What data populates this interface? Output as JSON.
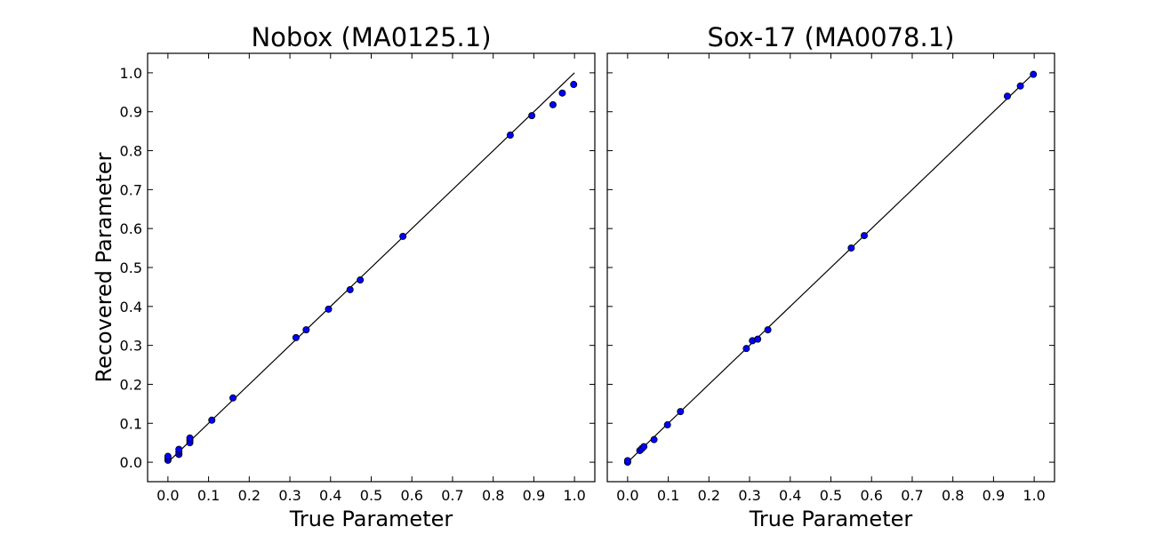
{
  "chart_data": [
    {
      "type": "scatter",
      "title": "Nobox (MA0125.1)",
      "xlabel": "True Parameter",
      "ylabel": "Recovered Parameter",
      "xlim": [
        -0.05,
        1.05
      ],
      "ylim": [
        -0.05,
        1.05
      ],
      "xticks": [
        "0.0",
        "0.1",
        "0.2",
        "0.3",
        "0.4",
        "0.5",
        "0.6",
        "0.7",
        "0.8",
        "0.9",
        "1.0"
      ],
      "yticks": [
        "0.0",
        "0.1",
        "0.2",
        "0.3",
        "0.4",
        "0.5",
        "0.6",
        "0.7",
        "0.8",
        "0.9",
        "1.0"
      ],
      "reference_line": [
        [
          0,
          0
        ],
        [
          1,
          1
        ]
      ],
      "points": [
        [
          0.0,
          0.005
        ],
        [
          0.0,
          0.01
        ],
        [
          0.0,
          0.015
        ],
        [
          0.027,
          0.02
        ],
        [
          0.027,
          0.027
        ],
        [
          0.027,
          0.033
        ],
        [
          0.054,
          0.05
        ],
        [
          0.054,
          0.056
        ],
        [
          0.054,
          0.062
        ],
        [
          0.108,
          0.108
        ],
        [
          0.16,
          0.165
        ],
        [
          0.315,
          0.32
        ],
        [
          0.34,
          0.34
        ],
        [
          0.395,
          0.393
        ],
        [
          0.448,
          0.443
        ],
        [
          0.473,
          0.468
        ],
        [
          0.578,
          0.58
        ],
        [
          0.842,
          0.84
        ],
        [
          0.895,
          0.89
        ],
        [
          0.947,
          0.918
        ],
        [
          0.97,
          0.948
        ],
        [
          0.998,
          0.97
        ]
      ],
      "marker_color": "#0000ff"
    },
    {
      "type": "scatter",
      "title": "Sox-17 (MA0078.1)",
      "xlabel": "True Parameter",
      "ylabel": "",
      "xlim": [
        -0.05,
        1.05
      ],
      "ylim": [
        -0.05,
        1.05
      ],
      "xticks": [
        "0.0",
        "0.1",
        "0.2",
        "0.3",
        "0.4",
        "0.5",
        "0.6",
        "0.7",
        "0.8",
        "0.9",
        "1.0"
      ],
      "reference_line": [
        [
          0,
          0
        ],
        [
          1,
          1
        ]
      ],
      "points": [
        [
          0.0,
          0.0
        ],
        [
          0.0,
          0.004
        ],
        [
          0.03,
          0.03
        ],
        [
          0.035,
          0.035
        ],
        [
          0.04,
          0.04
        ],
        [
          0.065,
          0.058
        ],
        [
          0.098,
          0.096
        ],
        [
          0.13,
          0.13
        ],
        [
          0.292,
          0.292
        ],
        [
          0.307,
          0.312
        ],
        [
          0.32,
          0.316
        ],
        [
          0.345,
          0.34
        ],
        [
          0.55,
          0.55
        ],
        [
          0.582,
          0.582
        ],
        [
          0.934,
          0.94
        ],
        [
          0.966,
          0.966
        ],
        [
          0.998,
          0.996
        ]
      ],
      "marker_color": "#0000ff"
    }
  ]
}
